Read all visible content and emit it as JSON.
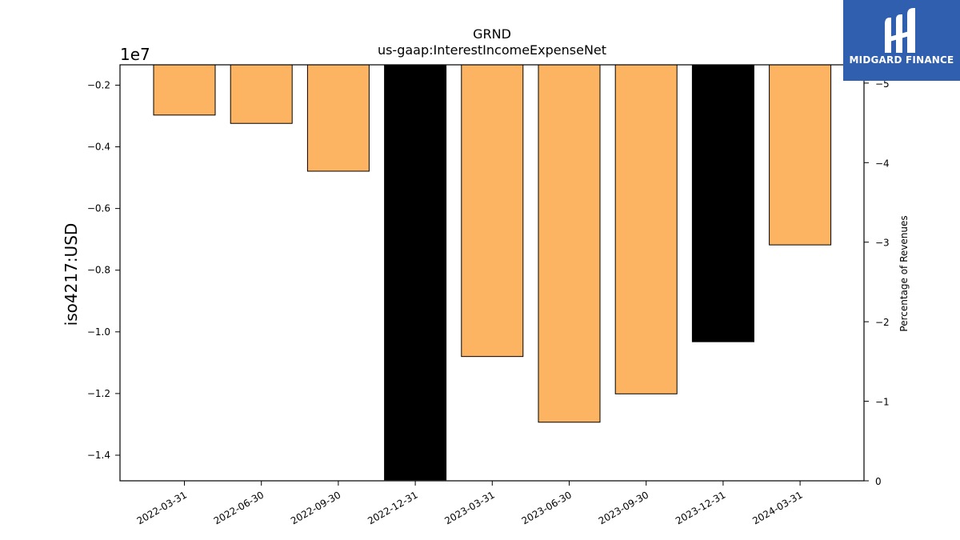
{
  "chart_data": {
    "type": "bar",
    "title": "GRND",
    "subtitle": "us-gaap:InterestIncomeExpenseNet",
    "ylabel": "iso4217:USD",
    "y2label": "Percentage of Revenues",
    "offset_label": "1e7",
    "scale": 10000000,
    "categories": [
      "2022-03-31",
      "2022-06-30",
      "2022-09-30",
      "2022-12-31",
      "2023-03-31",
      "2023-06-30",
      "2023-09-30",
      "2023-12-31",
      "2024-03-31"
    ],
    "values": [
      -2970000,
      -3240000,
      -4790000,
      -14800000,
      -10800000,
      -12930000,
      -12010000,
      -10320000,
      -7180000
    ],
    "colors": [
      "#fdb462",
      "#fdb462",
      "#fdb462",
      "#000000",
      "#fdb462",
      "#fdb462",
      "#fdb462",
      "#000000",
      "#fdb462"
    ],
    "ylim": [
      -14830000,
      -1340000
    ],
    "yticks": [
      -0.2,
      -0.4,
      -0.6,
      -0.8,
      -1.0,
      -1.2,
      -1.4
    ],
    "ytick_labels": [
      "−0.2",
      "−0.4",
      "−0.6",
      "−0.8",
      "−1.0",
      "−1.2",
      "−1.4"
    ],
    "y2lim": [
      0,
      -5.23
    ],
    "y2ticks": [
      0,
      -1,
      -2,
      -3,
      -4,
      -5
    ],
    "y2tick_labels": [
      "0",
      "−1",
      "−2",
      "−3",
      "−4",
      "−5"
    ],
    "grid": false,
    "legend": "none"
  },
  "logo": {
    "text": "MIDGARD FINANCE",
    "color": "#2f5fae"
  }
}
